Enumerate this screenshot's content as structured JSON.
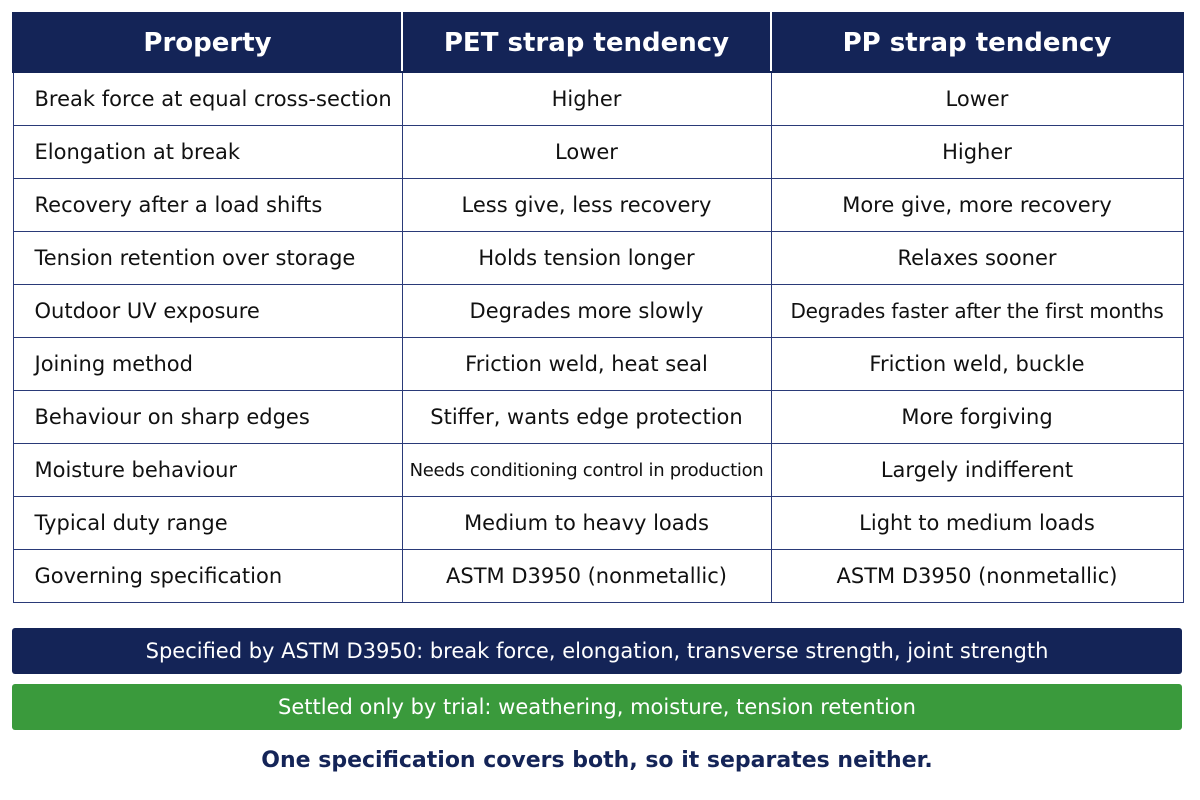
{
  "table": {
    "headers": [
      "Property",
      "PET strap tendency",
      "PP strap tendency"
    ],
    "rows": [
      {
        "property": "Break force at equal cross-section",
        "pet": "Higher",
        "pp": "Lower"
      },
      {
        "property": "Elongation at break",
        "pet": "Lower",
        "pp": "Higher"
      },
      {
        "property": "Recovery after a load shifts",
        "pet": "Less give, less recovery",
        "pp": "More give, more recovery"
      },
      {
        "property": "Tension retention over storage",
        "pet": "Holds tension longer",
        "pp": "Relaxes sooner"
      },
      {
        "property": "Outdoor UV exposure",
        "pet": "Degrades more slowly",
        "pp": "Degrades faster after the first months"
      },
      {
        "property": "Joining method",
        "pet": "Friction weld, heat seal",
        "pp": "Friction weld, buckle"
      },
      {
        "property": "Behaviour on sharp edges",
        "pet": "Stiffer, wants edge protection",
        "pp": "More forgiving"
      },
      {
        "property": "Moisture behaviour",
        "pet": "Needs conditioning control in production",
        "pp": "Largely indifferent"
      },
      {
        "property": "Typical duty range",
        "pet": "Medium to heavy loads",
        "pp": "Light to medium loads"
      },
      {
        "property": "Governing specification",
        "pet": "ASTM D3950 (nonmetallic)",
        "pp": "ASTM D3950 (nonmetallic)"
      }
    ]
  },
  "banners": {
    "specified": "Specified by ASTM D3950: break force, elongation, transverse strength, joint strength",
    "trial": "Settled only by trial: weathering, moisture, tension retention"
  },
  "footnote": "One specification covers both, so it separates neither.",
  "colors": {
    "navy": "#142457",
    "green": "#3a9a3c",
    "white": "#ffffff"
  }
}
